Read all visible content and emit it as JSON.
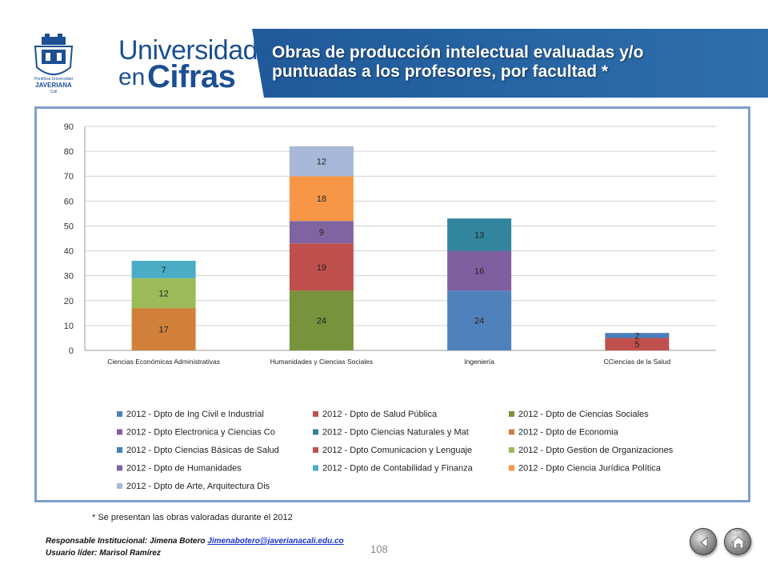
{
  "header": {
    "brand_line1": "Universidad",
    "brand_line2_en": "en",
    "brand_line2_cifras": "Cifras",
    "title_line1": "Obras de producción intelectual evaluadas y/o",
    "title_line2": "puntuadas a los profesores, por facultad *",
    "seal_text_top": "Pontificia Universidad",
    "seal_text_bottom": "JAVERIANA",
    "seal_text_city": "Cali"
  },
  "chart_data": {
    "type": "bar",
    "stacked": true,
    "title": "",
    "xlabel": "",
    "ylabel": "",
    "ylim": [
      0,
      90
    ],
    "yticks": [
      0,
      10,
      20,
      30,
      40,
      50,
      60,
      70,
      80,
      90
    ],
    "grid": true,
    "legend_position": "bottom",
    "categories": [
      "Ciencias Económicas  Administrativas",
      "Humanidades y Ciencias  Sociales",
      "Ingeniería",
      "CCiencias de la Salud"
    ],
    "series": [
      {
        "name": "2012 - Dpto de Ing Civil e Industrial",
        "color": "#4f81bd",
        "values": [
          0,
          0,
          24,
          0
        ]
      },
      {
        "name": "2012 - Dpto de Salud Pública",
        "color": "#c0504d",
        "values": [
          0,
          0,
          0,
          5
        ]
      },
      {
        "name": "2012 - Dpto de Ciencias Sociales",
        "color": "#77933c",
        "values": [
          0,
          24,
          0,
          0
        ]
      },
      {
        "name": "2012 - Dpto Electronica y Ciencias Co",
        "color": "#7f5fa0",
        "values": [
          0,
          0,
          16,
          0
        ]
      },
      {
        "name": "2012 - Dpto Ciencias Naturales y Mat",
        "color": "#31859c",
        "values": [
          0,
          0,
          13,
          0
        ]
      },
      {
        "name": "2012 - Dpto de Economia",
        "color": "#d0803a",
        "values": [
          17,
          0,
          0,
          0
        ]
      },
      {
        "name": "2012 - Dpto Ciencias Básicas de Salud",
        "color": "#4a7ebb",
        "values": [
          0,
          0,
          0,
          2
        ]
      },
      {
        "name": "2012 - Dpto Comunicacion y Lenguaje",
        "color": "#c0504d",
        "values": [
          0,
          19,
          0,
          0
        ]
      },
      {
        "name": "2012 - Dpto Gestion de Organizaciones",
        "color": "#9bbb59",
        "values": [
          12,
          0,
          0,
          0
        ]
      },
      {
        "name": "2012 - Dpto de Humanidades",
        "color": "#8064a2",
        "values": [
          0,
          9,
          0,
          0
        ]
      },
      {
        "name": "2012 - Dpto de Contabilidad y Finanza",
        "color": "#4bacc6",
        "values": [
          7,
          0,
          0,
          0
        ]
      },
      {
        "name": "2012 - Dpto Ciencia Jurídica Política",
        "color": "#f79646",
        "values": [
          0,
          18,
          0,
          0
        ]
      },
      {
        "name": "2012 - Dpto de Arte, Arquitectura Dis",
        "color": "#a8b8d8",
        "values": [
          0,
          12,
          0,
          0
        ]
      }
    ]
  },
  "footer": {
    "footnote": "* Se presentan las obras  valoradas durante el 2012",
    "responsible_label": "Responsable Institucional:  Jimena Botero ",
    "responsible_email": "Jimenabotero@javerianacali.edu.co",
    "leader": "Usuario líder: Marisol Ramírez",
    "page_number": "108",
    "home_label": "Inicio"
  },
  "icons": {
    "back": "back-arrow-icon",
    "home": "home-icon"
  }
}
